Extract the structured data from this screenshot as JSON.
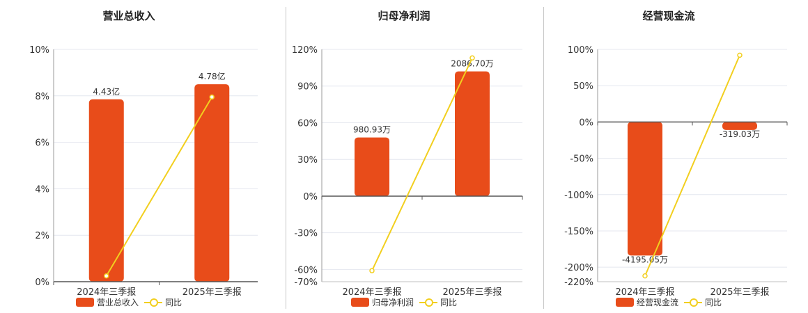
{
  "colors": {
    "bar": "#e84c1a",
    "line": "#f2cf1f",
    "axis": "#555555",
    "grid": "#e4e7ef"
  },
  "chart_data": [
    {
      "type": "bar",
      "title": "营业总收入",
      "categories": [
        "2024年三季报",
        "2025年三季报"
      ],
      "bar_labels": [
        "4.43亿",
        "4.78亿"
      ],
      "yticks": [
        0,
        2,
        4,
        6,
        8,
        10
      ],
      "ytick_labels": [
        "0%",
        "2%",
        "4%",
        "6%",
        "8%",
        "10%"
      ],
      "ylim": [
        0,
        10
      ],
      "bar_values": [
        7.85,
        8.5
      ],
      "line_values": [
        0.25,
        7.95
      ],
      "series": [
        {
          "name": "营业总收入"
        },
        {
          "name": "同比"
        }
      ]
    },
    {
      "type": "bar",
      "title": "归母净利润",
      "categories": [
        "2024年三季报",
        "2025年三季报"
      ],
      "bar_labels": [
        "980.93万",
        "2086.70万"
      ],
      "yticks": [
        -70,
        -60,
        -30,
        0,
        30,
        60,
        90,
        120
      ],
      "ytick_labels": [
        "-70%",
        "-60%",
        "-30%",
        "0%",
        "30%",
        "60%",
        "90%",
        "120%"
      ],
      "ylim": [
        -70,
        120
      ],
      "bar_values": [
        48,
        102
      ],
      "line_values": [
        -61,
        113
      ],
      "series": [
        {
          "name": "归母净利润"
        },
        {
          "name": "同比"
        }
      ]
    },
    {
      "type": "bar",
      "title": "经营现金流",
      "categories": [
        "2024年三季报",
        "2025年三季报"
      ],
      "bar_labels": [
        "-4195.05万",
        "-319.03万"
      ],
      "yticks": [
        -220,
        -200,
        -150,
        -100,
        -50,
        0,
        50,
        100
      ],
      "ytick_labels": [
        "-220%",
        "-200%",
        "-150%",
        "-100%",
        "-50%",
        "0%",
        "50%",
        "100%"
      ],
      "ylim": [
        -220,
        100
      ],
      "bar_values": [
        -184,
        -11
      ],
      "line_values": [
        -212,
        92
      ],
      "series": [
        {
          "name": "经营现金流"
        },
        {
          "name": "同比"
        }
      ]
    }
  ]
}
